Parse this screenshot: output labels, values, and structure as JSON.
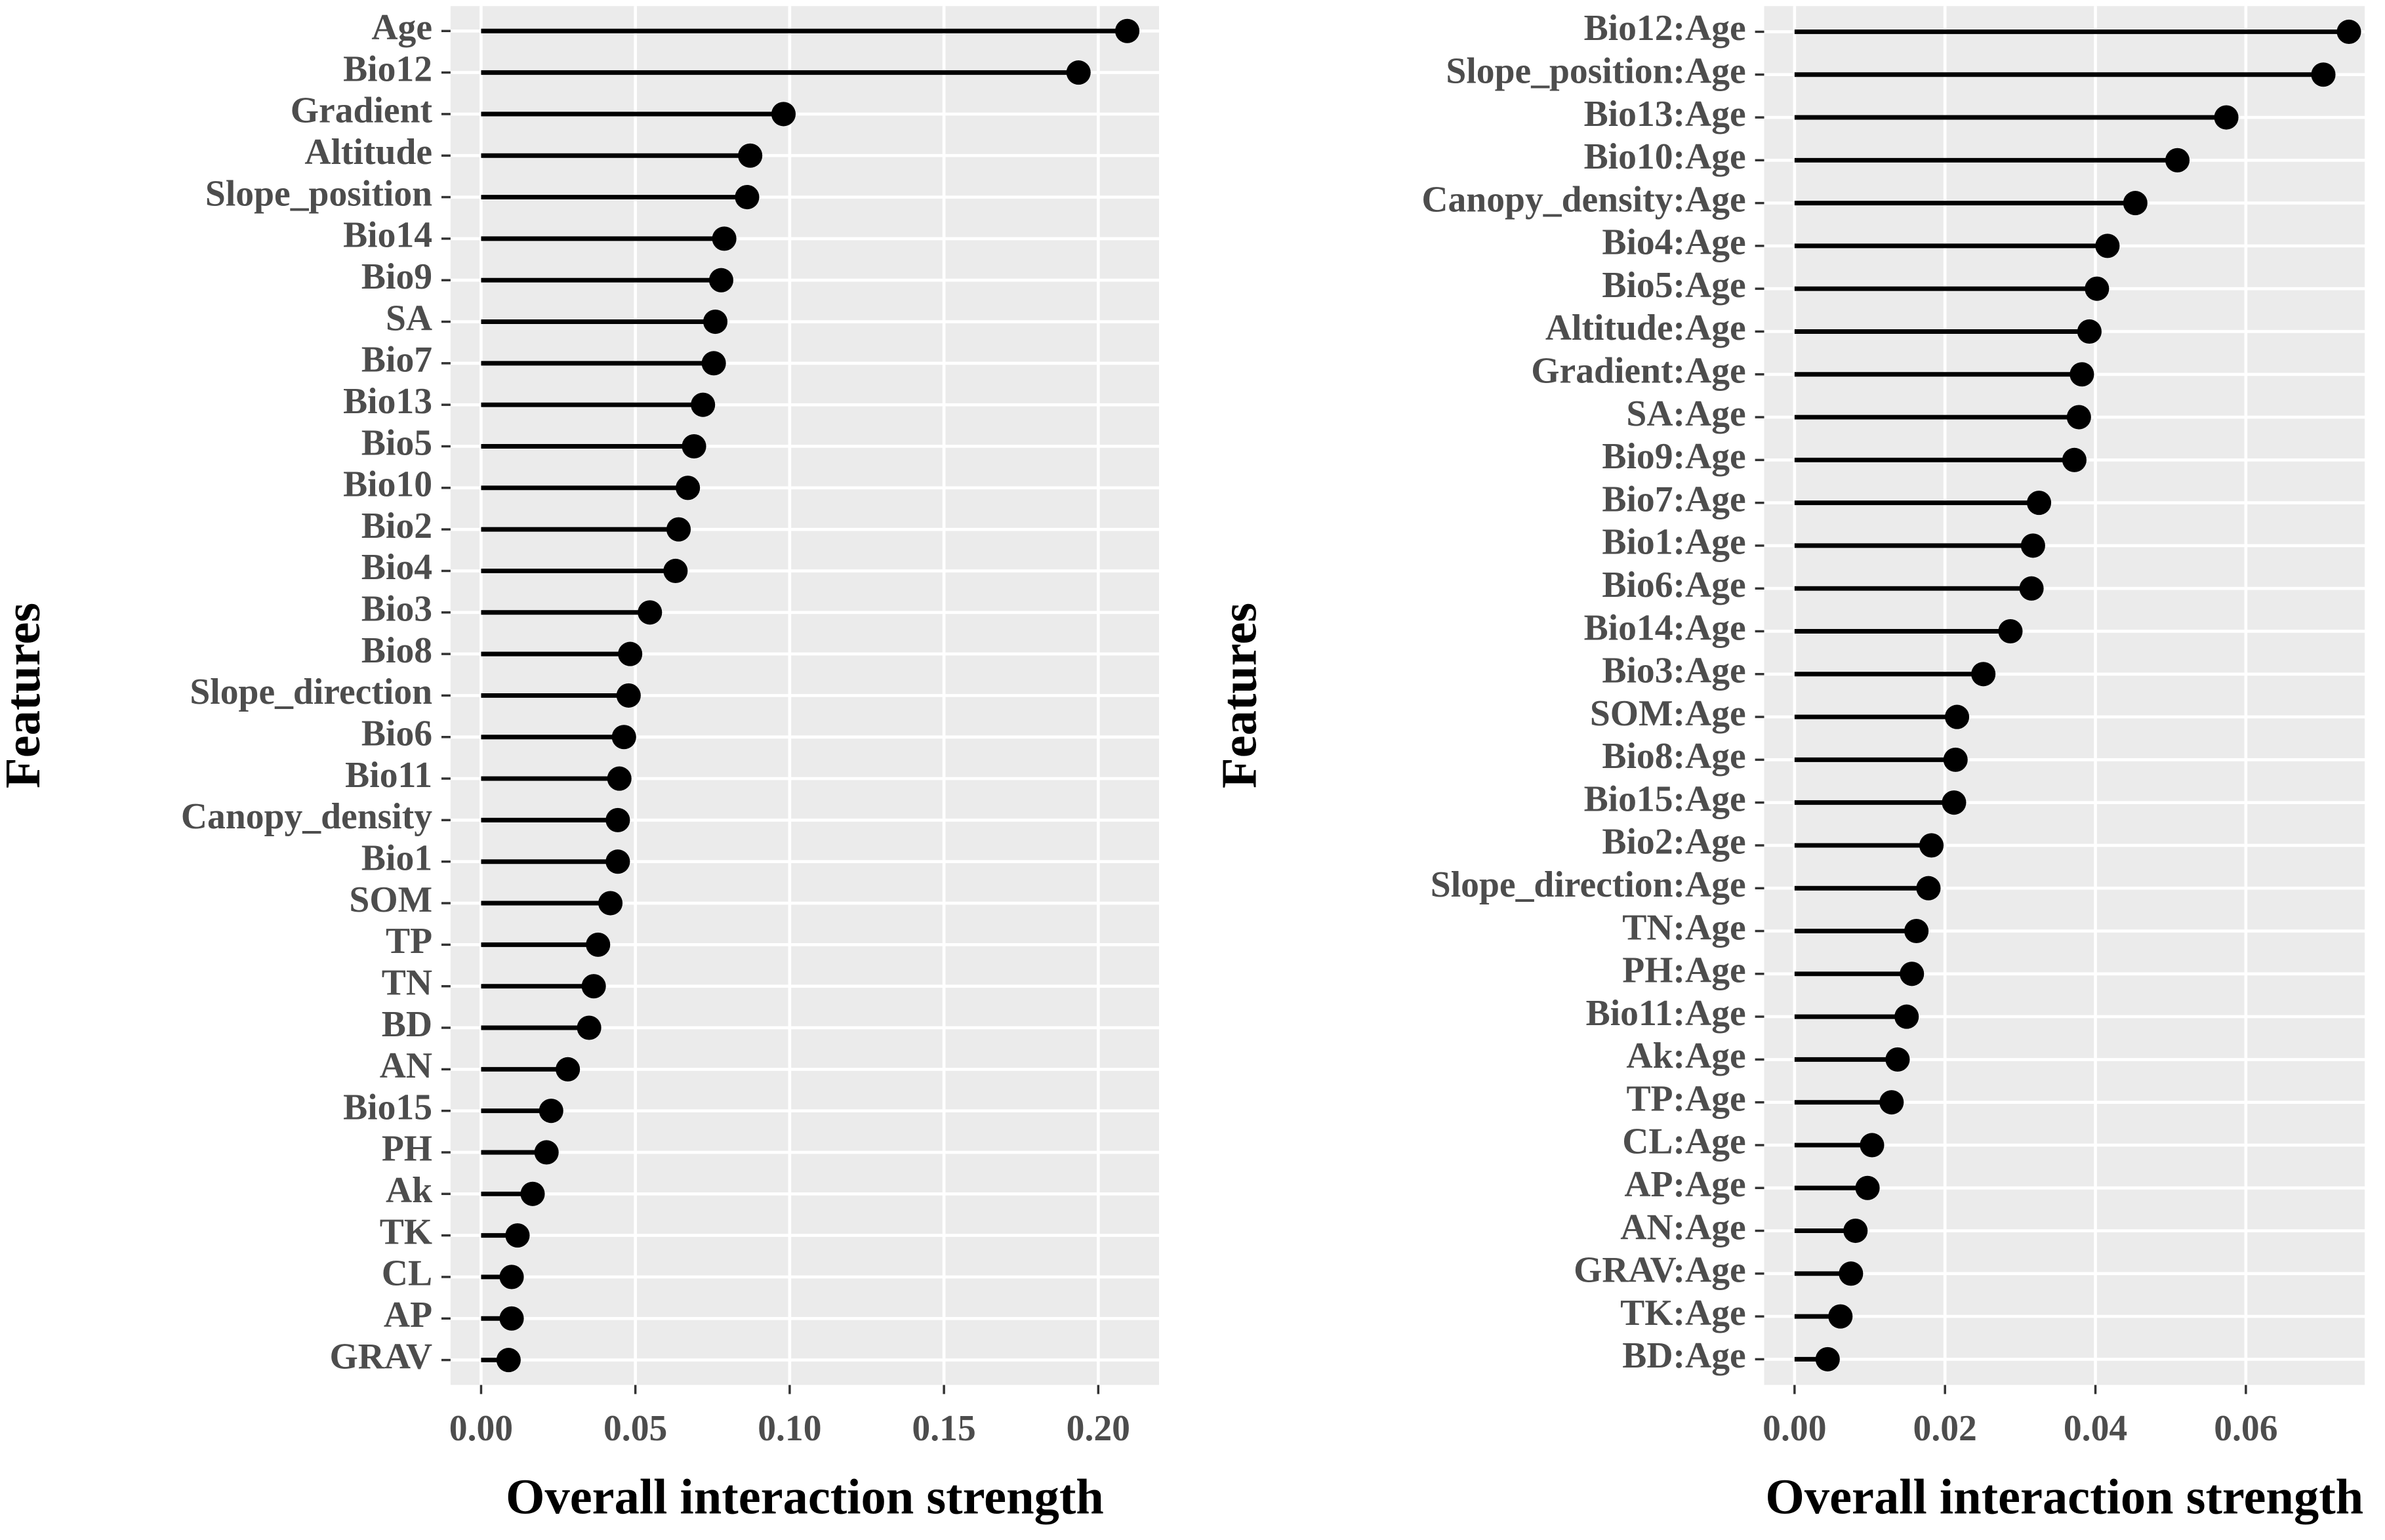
{
  "chart_data": [
    {
      "type": "lollipop",
      "color": "#000000",
      "grid": true,
      "xlabel": "Overall interaction strength",
      "ylabel": "Features",
      "categories": [
        "Age",
        "Bio12",
        "Gradient",
        "Altitude",
        "Slope_position",
        "Bio14",
        "Bio9",
        "SA",
        "Bio7",
        "Bio13",
        "Bio5",
        "Bio10",
        "Bio2",
        "Bio4",
        "Bio3",
        "Bio8",
        "Slope_direction",
        "Bio6",
        "Bio11",
        "Canopy_density",
        "Bio1",
        "SOM",
        "TP",
        "TN",
        "BD",
        "AN",
        "Bio15",
        "PH",
        "Ak",
        "TK",
        "CL",
        "AP",
        "GRAV"
      ],
      "values": [
        0.2094,
        0.1936,
        0.098,
        0.0872,
        0.0862,
        0.0788,
        0.0778,
        0.0759,
        0.0754,
        0.0719,
        0.069,
        0.067,
        0.064,
        0.063,
        0.0547,
        0.0483,
        0.0478,
        0.0463,
        0.0448,
        0.0443,
        0.0443,
        0.0419,
        0.0379,
        0.0365,
        0.035,
        0.0281,
        0.0227,
        0.0212,
        0.0167,
        0.0118,
        0.0099,
        0.0099,
        0.0089
      ],
      "xlim": [
        -0.0099,
        0.2197
      ],
      "xticks": [
        {
          "value": 0,
          "label": "0.00"
        },
        0.05,
        {
          "value": 0.1,
          "label": "0.10"
        },
        0.15,
        {
          "value": 0.2,
          "label": "0.20"
        }
      ]
    },
    {
      "type": "lollipop",
      "color": "#000000",
      "grid": true,
      "xlabel": "Overall interaction strength",
      "ylabel": "Features",
      "categories": [
        "Bio12:Age",
        "Slope_position:Age",
        "Bio13:Age",
        "Bio10:Age",
        "Canopy_density:Age",
        "Bio4:Age",
        "Bio5:Age",
        "Altitude:Age",
        "Gradient:Age",
        "SA:Age",
        "Bio9:Age",
        "Bio7:Age",
        "Bio1:Age",
        "Bio6:Age",
        "Bio14:Age",
        "Bio3:Age",
        "SOM:Age",
        "Bio8:Age",
        "Bio15:Age",
        "Bio2:Age",
        "Slope_direction:Age",
        "TN:Age",
        "PH:Age",
        "Bio11:Age",
        "Ak:Age",
        "TP:Age",
        "CL:Age",
        "AP:Age",
        "AN:Age",
        "GRAV:Age",
        "TK:Age",
        "BD:Age"
      ],
      "values": [
        0.0737,
        0.0703,
        0.0574,
        0.0509,
        0.0453,
        0.0416,
        0.0402,
        0.0392,
        0.0382,
        0.0378,
        0.0372,
        0.0325,
        0.0317,
        0.0315,
        0.0287,
        0.0251,
        0.0216,
        0.0214,
        0.0212,
        0.0182,
        0.0178,
        0.0162,
        0.0156,
        0.0149,
        0.0137,
        0.0129,
        0.0103,
        0.0097,
        0.0081,
        0.0075,
        0.0061,
        0.0044
      ],
      "xlim": [
        -0.00404,
        0.0758
      ],
      "xticks": [
        {
          "value": 0,
          "label": "0.00"
        },
        0.02,
        0.04,
        0.06
      ]
    }
  ]
}
